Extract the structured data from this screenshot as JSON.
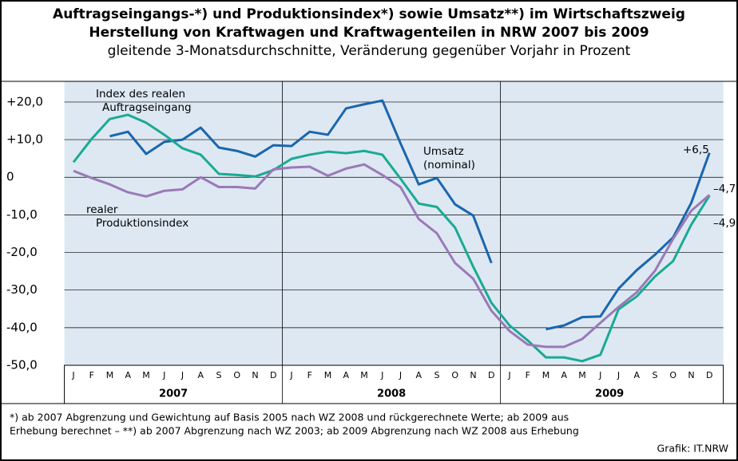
{
  "chart_data": {
    "type": "line",
    "title": [
      "Auftragseingangs-*) und Produktionsindex*) sowie Umsatz**) im Wirtschaftszweig",
      "Herstellung von Kraftwagen und Kraftwagenteilen in NRW 2007 bis 2009"
    ],
    "subtitle": "gleitende 3-Monatsdurchschnitte, Veränderung gegenüber Vorjahr in Prozent",
    "categories": [
      "J",
      "F",
      "M",
      "A",
      "M",
      "J",
      "J",
      "A",
      "S",
      "O",
      "N",
      "D",
      "J",
      "F",
      "M",
      "A",
      "M",
      "J",
      "J",
      "A",
      "S",
      "O",
      "N",
      "D",
      "J",
      "F",
      "M",
      "A",
      "M",
      "J",
      "J",
      "A",
      "S",
      "O",
      "N",
      "D"
    ],
    "years": [
      "2007",
      "2008",
      "2009"
    ],
    "ylim": [
      -50,
      25.5
    ],
    "yticks": [
      {
        "value": 20,
        "label": "+20,0"
      },
      {
        "value": 10,
        "label": "+10,0"
      },
      0,
      {
        "value": -10,
        "label": "-10,0"
      },
      {
        "value": -20,
        "label": "-20,0"
      },
      {
        "value": -30,
        "label": "-30,0"
      },
      {
        "value": -40,
        "label": "-40,0"
      },
      {
        "value": -50,
        "label": "-50,0"
      }
    ],
    "grid": true,
    "series": [
      {
        "name": [
          "Index des realen",
          "Auftragseingang"
        ],
        "color": "#1a66ad",
        "values": [
          null,
          null,
          10.9,
          12.1,
          6.2,
          9.4,
          10,
          13.2,
          7.9,
          7,
          5.5,
          8.5,
          8.3,
          12.1,
          11.3,
          18.3,
          19.4,
          20.4,
          9,
          -1.9,
          -0.2,
          -7.2,
          -10.2,
          -22.8,
          null,
          null,
          -40.4,
          -39.4,
          -37.2,
          -37,
          -29.6,
          -24.7,
          -20.6,
          -16,
          -6.8,
          6.5
        ],
        "value_labels": [
          null,
          null,
          null,
          null,
          null,
          null,
          null,
          null,
          null,
          null,
          null,
          null,
          null,
          null,
          null,
          null,
          null,
          null,
          null,
          null,
          null,
          null,
          null,
          null,
          null,
          null,
          null,
          null,
          null,
          null,
          null,
          null,
          null,
          null,
          null,
          "+6,5"
        ]
      },
      {
        "name": [
          "Umsatz",
          "(nominal)"
        ],
        "color": "#1aaa92",
        "values": [
          4,
          10.2,
          15.5,
          16.6,
          14.5,
          11.3,
          7.7,
          6,
          0.9,
          0.6,
          0.2,
          1.9,
          4.9,
          6,
          6.8,
          6.4,
          7,
          6,
          -0.4,
          -7,
          -7.9,
          -13.4,
          -23.8,
          -33.4,
          -39.4,
          -43.4,
          -47.9,
          -47.9,
          -48.9,
          -47.2,
          -35.1,
          -31.7,
          -26.4,
          -22.3,
          -12.6,
          -4.9
        ],
        "value_labels": [
          null,
          null,
          null,
          null,
          null,
          null,
          null,
          null,
          null,
          null,
          null,
          null,
          null,
          null,
          null,
          null,
          null,
          null,
          null,
          null,
          null,
          null,
          null,
          null,
          null,
          null,
          null,
          null,
          null,
          null,
          null,
          null,
          null,
          null,
          null,
          "–4,9"
        ]
      },
      {
        "name": [
          "realer",
          "Produktionsindex"
        ],
        "color": "#9b79b8",
        "values": [
          1.7,
          -0.2,
          -1.9,
          -4,
          -5.1,
          -3.6,
          -3.2,
          0,
          -2.6,
          -2.6,
          -3,
          2.1,
          2.6,
          2.8,
          0.4,
          2.3,
          3.4,
          0.6,
          -2.6,
          -11.1,
          -14.9,
          -22.8,
          -27,
          -35.5,
          -40.9,
          -44.5,
          -45.1,
          -45.1,
          -43,
          -38.7,
          -34.5,
          -30.6,
          -24.9,
          -16.4,
          -8.9,
          -4.7
        ],
        "value_labels": [
          null,
          null,
          null,
          null,
          null,
          null,
          null,
          null,
          null,
          null,
          null,
          null,
          null,
          null,
          null,
          null,
          null,
          null,
          null,
          null,
          null,
          null,
          null,
          null,
          null,
          null,
          null,
          null,
          null,
          null,
          null,
          null,
          null,
          null,
          null,
          "–4,7"
        ]
      }
    ],
    "footnotes": [
      "*) ab 2007 Abgrenzung und Gewichtung auf Basis 2005 nach WZ 2008 und rückgerechnete Werte; ab 2009 aus",
      "Erhebung berechnet – **) ab 2007 Abgrenzung nach WZ 2003; ab 2009 Abgrenzung nach WZ 2008 aus Erhebung"
    ],
    "source": "Grafik: IT.NRW"
  }
}
